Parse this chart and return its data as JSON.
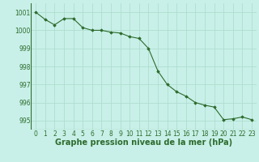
{
  "x": [
    0,
    1,
    2,
    3,
    4,
    5,
    6,
    7,
    8,
    9,
    10,
    11,
    12,
    13,
    14,
    15,
    16,
    17,
    18,
    19,
    20,
    21,
    22,
    23
  ],
  "y": [
    1001.0,
    1000.6,
    1000.3,
    1000.65,
    1000.65,
    1000.15,
    1000.0,
    1000.0,
    999.9,
    999.85,
    999.65,
    999.55,
    999.0,
    997.75,
    997.0,
    996.6,
    996.35,
    996.0,
    995.85,
    995.75,
    995.05,
    995.1,
    995.2,
    995.05
  ],
  "line_color": "#2d6b2d",
  "marker": "D",
  "marker_size": 1.8,
  "bg_color": "#c8f0e8",
  "grid_color": "#b0ddd0",
  "xlabel": "Graphe pression niveau de la mer (hPa)",
  "xlabel_fontsize": 7,
  "xlabel_color": "#2d6b2d",
  "tick_color": "#2d6b2d",
  "tick_fontsize": 5.5,
  "ylim": [
    994.5,
    1001.5
  ],
  "xlim": [
    -0.5,
    23.5
  ],
  "yticks": [
    995,
    996,
    997,
    998,
    999,
    1000,
    1001
  ],
  "xticks": [
    0,
    1,
    2,
    3,
    4,
    5,
    6,
    7,
    8,
    9,
    10,
    11,
    12,
    13,
    14,
    15,
    16,
    17,
    18,
    19,
    20,
    21,
    22,
    23
  ]
}
